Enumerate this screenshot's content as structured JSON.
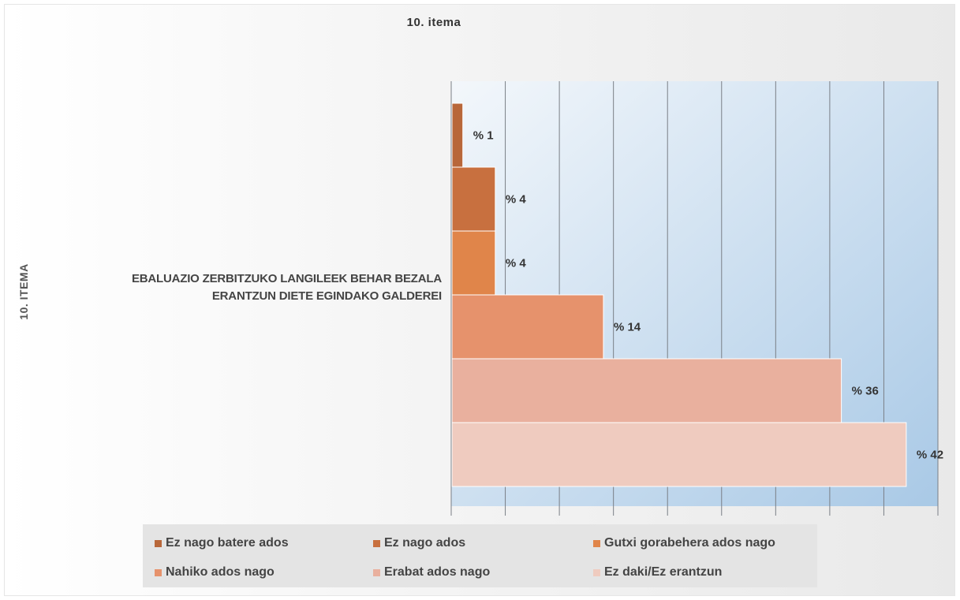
{
  "chart_data": {
    "type": "bar",
    "orientation": "horizontal",
    "title": "10. itema",
    "ylabel": "10. ITEMA",
    "category": "EBALUAZIO ZERBITZUKO LANGILEEK BEHAR BEZALA ERANTZUN DIETE EGINDAKO GALDEREI",
    "category_lines": [
      "EBALUAZIO ZERBITZUKO LANGILEEK BEHAR BEZALA",
      "ERANTZUN DIETE EGINDAKO GALDEREI"
    ],
    "xlim": [
      0,
      45
    ],
    "grid": true,
    "legend_position": "bottom",
    "series": [
      {
        "name": "Ez nago batere ados",
        "value": 1,
        "label": "% 1",
        "color": "#b8673a"
      },
      {
        "name": "Ez nago ados",
        "value": 4,
        "label": "% 4",
        "color": "#c8703f"
      },
      {
        "name": "Gutxi gorabehera ados nago",
        "value": 4,
        "label": "% 4",
        "color": "#e0854a"
      },
      {
        "name": "Nahiko ados nago",
        "value": 14,
        "label": "% 14",
        "color": "#e6926c"
      },
      {
        "name": "Erabat ados nago",
        "value": 36,
        "label": "% 36",
        "color": "#e9b09e"
      },
      {
        "name": "Ez daki/Ez erantzun",
        "value": 42,
        "label": "% 42",
        "color": "#efcbbf"
      }
    ]
  }
}
